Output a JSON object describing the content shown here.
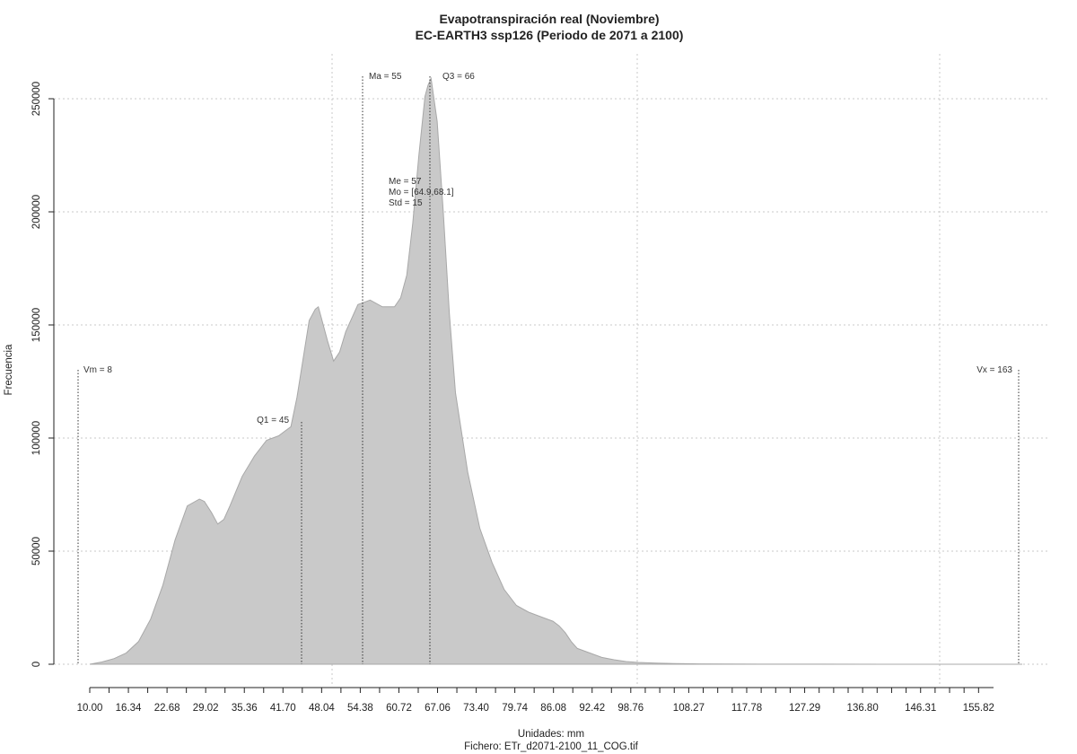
{
  "chart_data": {
    "type": "area",
    "title": "Evapotranspiración real (Noviembre)",
    "subtitle": "EC-EARTH3 ssp126 (Periodo de 2071 a 2100)",
    "xlabel": "Unidades: mm",
    "caption": "Fichero: ETr_d2071-2100_11_COG.tif",
    "ylabel": "Frecuencia",
    "xlim": [
      8,
      163
    ],
    "ylim": [
      0,
      260000
    ],
    "grid": true,
    "x_ticks": [
      "10.00",
      "16.34",
      "22.68",
      "29.02",
      "35.36",
      "41.70",
      "48.04",
      "54.38",
      "60.72",
      "67.06",
      "73.40",
      "79.74",
      "86.08",
      "92.42",
      "98.76",
      "108.27",
      "117.78",
      "127.29",
      "136.80",
      "146.31",
      "155.82"
    ],
    "y_ticks": [
      "0",
      "50000",
      "100000",
      "150000",
      "200000",
      "250000"
    ],
    "series": [
      {
        "x": [
          10,
          12,
          14,
          16,
          18,
          20,
          22,
          24,
          26,
          28,
          28.8,
          30,
          31,
          32,
          33,
          35,
          37,
          39,
          41,
          42,
          43,
          44,
          45,
          46,
          47,
          47.5,
          48,
          49,
          50,
          51,
          52,
          54,
          55,
          56,
          58,
          60,
          61,
          62,
          63,
          64,
          65,
          65.5,
          66,
          67,
          68,
          69,
          70,
          72,
          74,
          76,
          78,
          80,
          82,
          84,
          86,
          87,
          88,
          89,
          90,
          92,
          94,
          96,
          98,
          100,
          103,
          106,
          110,
          120,
          130,
          140,
          150,
          163
        ],
        "y": [
          0,
          1000,
          2500,
          5000,
          10000,
          20000,
          35000,
          55000,
          70000,
          73000,
          72000,
          67000,
          62000,
          64000,
          70000,
          83000,
          92000,
          99000,
          101000,
          103000,
          105000,
          118000,
          135000,
          152000,
          157000,
          158000,
          153000,
          143000,
          134000,
          138000,
          147000,
          159000,
          160000,
          161000,
          158000,
          158000,
          162000,
          172000,
          195000,
          225000,
          251000,
          256000,
          259000,
          240000,
          200000,
          155000,
          120000,
          85000,
          60000,
          45000,
          33000,
          26000,
          23000,
          21000,
          19000,
          17000,
          14000,
          10000,
          7000,
          5000,
          3000,
          2000,
          1200,
          800,
          500,
          300,
          150,
          50,
          20,
          10,
          5,
          2
        ]
      }
    ],
    "annotations": {
      "vm": "Vm = 8",
      "q1": "Q1 = 45",
      "ma": "Ma = 55",
      "q3": "Q3 = 66",
      "vx": "Vx = 163",
      "me": "Me = 57",
      "mo": "Mo = [64.9,68.1]",
      "std": "Std = 15"
    },
    "markers": {
      "vm": 8,
      "q1": 45,
      "ma": 55,
      "q3": 66,
      "vx": 163
    }
  }
}
